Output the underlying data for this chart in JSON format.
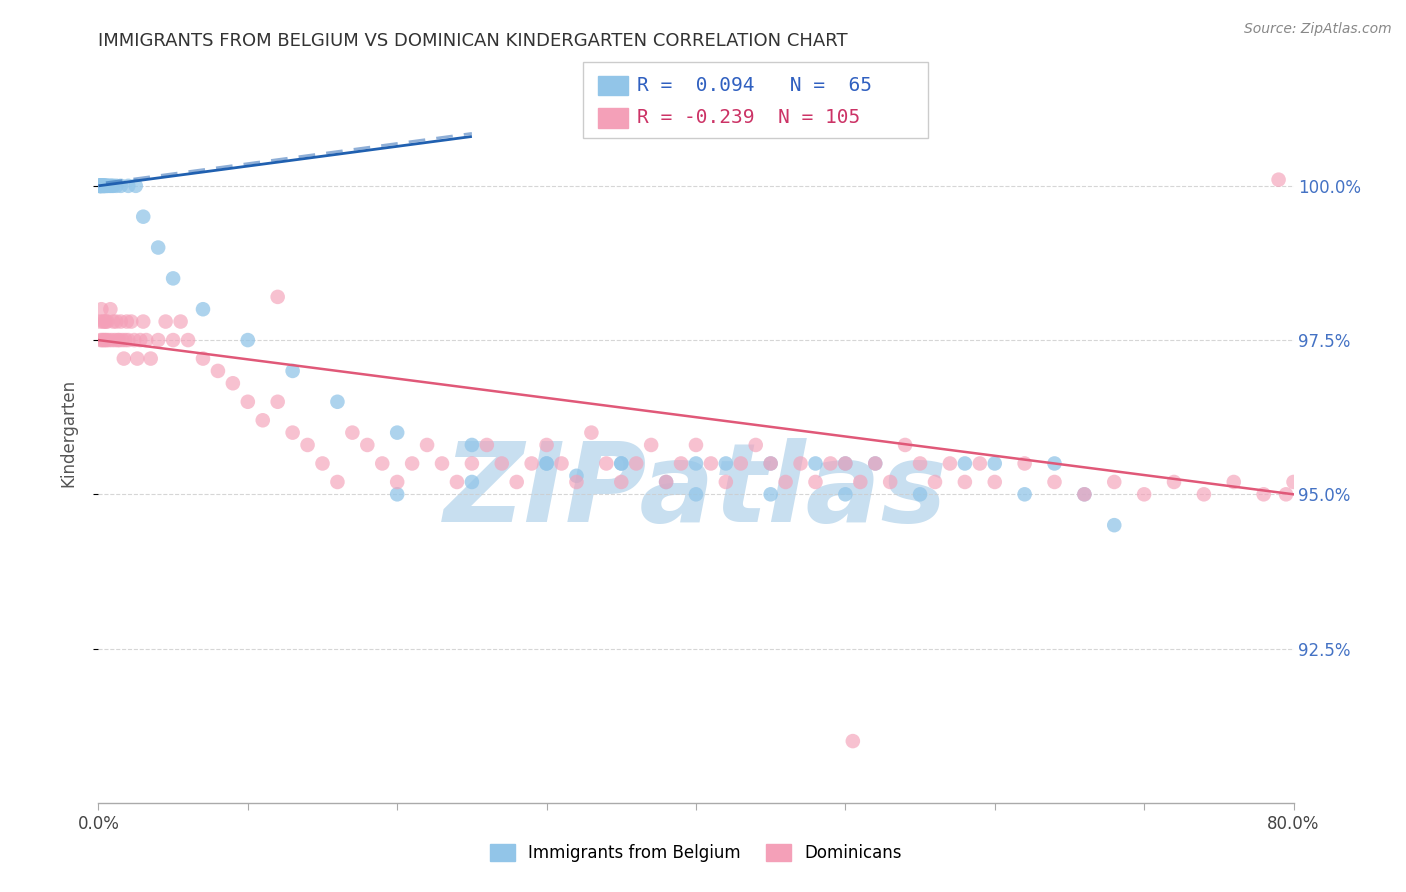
{
  "title": "IMMIGRANTS FROM BELGIUM VS DOMINICAN KINDERGARTEN CORRELATION CHART",
  "source": "Source: ZipAtlas.com",
  "ylabel_label": "Kindergarten",
  "yticks": [
    92.5,
    95.0,
    97.5,
    100.0
  ],
  "ytick_labels": [
    "92.5%",
    "95.0%",
    "97.5%",
    "100.0%"
  ],
  "xlim": [
    0.0,
    80.0
  ],
  "ylim": [
    90.0,
    102.0
  ],
  "yplot_min": 90.0,
  "yplot_max": 102.0,
  "belgium_R": 0.094,
  "belgium_N": 65,
  "dominican_R": -0.239,
  "dominican_N": 105,
  "belgium_color": "#92c5e8",
  "dominican_color": "#f4a0b8",
  "belgium_line_color": "#2060b0",
  "dominican_line_color": "#e05878",
  "watermark_color": "#c8dff0",
  "belgium_x": [
    0.05,
    0.06,
    0.08,
    0.1,
    0.12,
    0.13,
    0.14,
    0.15,
    0.16,
    0.18,
    0.2,
    0.22,
    0.25,
    0.28,
    0.3,
    0.32,
    0.35,
    0.38,
    0.4,
    0.42,
    0.45,
    0.5,
    0.55,
    0.6,
    0.7,
    0.8,
    0.9,
    1.0,
    1.2,
    1.5,
    2.0,
    2.5,
    3.0,
    4.0,
    5.0,
    7.0,
    10.0,
    13.0,
    16.0,
    20.0,
    25.0,
    30.0,
    35.0,
    40.0,
    45.0,
    50.0,
    20.0,
    25.0,
    30.0,
    32.0,
    35.0,
    38.0,
    40.0,
    42.0,
    45.0,
    48.0,
    50.0,
    52.0,
    55.0,
    58.0,
    60.0,
    62.0,
    64.0,
    66.0,
    68.0
  ],
  "belgium_y": [
    100.0,
    100.0,
    100.0,
    100.0,
    100.0,
    100.0,
    100.0,
    100.0,
    100.0,
    100.0,
    100.0,
    100.0,
    100.0,
    100.0,
    100.0,
    100.0,
    100.0,
    100.0,
    100.0,
    100.0,
    100.0,
    100.0,
    100.0,
    100.0,
    100.0,
    100.0,
    100.0,
    100.0,
    100.0,
    100.0,
    100.0,
    100.0,
    99.5,
    99.0,
    98.5,
    98.0,
    97.5,
    97.0,
    96.5,
    96.0,
    95.8,
    95.5,
    95.5,
    95.5,
    95.5,
    95.5,
    95.0,
    95.2,
    95.5,
    95.3,
    95.5,
    95.2,
    95.0,
    95.5,
    95.0,
    95.5,
    95.0,
    95.5,
    95.0,
    95.5,
    95.5,
    95.0,
    95.5,
    95.0,
    94.5
  ],
  "dominican_x": [
    0.1,
    0.15,
    0.2,
    0.25,
    0.3,
    0.35,
    0.4,
    0.45,
    0.5,
    0.55,
    0.6,
    0.7,
    0.8,
    0.9,
    1.0,
    1.1,
    1.2,
    1.3,
    1.4,
    1.5,
    1.6,
    1.7,
    1.8,
    1.9,
    2.0,
    2.2,
    2.4,
    2.6,
    2.8,
    3.0,
    3.2,
    3.5,
    4.0,
    4.5,
    5.0,
    5.5,
    6.0,
    7.0,
    8.0,
    9.0,
    10.0,
    11.0,
    12.0,
    13.0,
    14.0,
    15.0,
    16.0,
    17.0,
    18.0,
    19.0,
    20.0,
    21.0,
    22.0,
    23.0,
    24.0,
    25.0,
    26.0,
    27.0,
    28.0,
    29.0,
    30.0,
    31.0,
    32.0,
    33.0,
    34.0,
    35.0,
    36.0,
    37.0,
    38.0,
    39.0,
    40.0,
    41.0,
    42.0,
    43.0,
    44.0,
    45.0,
    46.0,
    47.0,
    48.0,
    49.0,
    50.0,
    51.0,
    52.0,
    53.0,
    54.0,
    55.0,
    56.0,
    57.0,
    58.0,
    59.0,
    60.0,
    62.0,
    64.0,
    66.0,
    68.0,
    70.0,
    72.0,
    74.0,
    76.0,
    78.0,
    79.0,
    79.5,
    80.0,
    50.5,
    12.0
  ],
  "dominican_y": [
    97.8,
    97.5,
    98.0,
    97.5,
    97.8,
    97.5,
    97.8,
    97.5,
    97.8,
    97.5,
    97.8,
    97.5,
    98.0,
    97.5,
    97.8,
    97.5,
    97.8,
    97.5,
    97.5,
    97.8,
    97.5,
    97.2,
    97.5,
    97.8,
    97.5,
    97.8,
    97.5,
    97.2,
    97.5,
    97.8,
    97.5,
    97.2,
    97.5,
    97.8,
    97.5,
    97.8,
    97.5,
    97.2,
    97.0,
    96.8,
    96.5,
    96.2,
    96.5,
    96.0,
    95.8,
    95.5,
    95.2,
    96.0,
    95.8,
    95.5,
    95.2,
    95.5,
    95.8,
    95.5,
    95.2,
    95.5,
    95.8,
    95.5,
    95.2,
    95.5,
    95.8,
    95.5,
    95.2,
    96.0,
    95.5,
    95.2,
    95.5,
    95.8,
    95.2,
    95.5,
    95.8,
    95.5,
    95.2,
    95.5,
    95.8,
    95.5,
    95.2,
    95.5,
    95.2,
    95.5,
    95.5,
    95.2,
    95.5,
    95.2,
    95.8,
    95.5,
    95.2,
    95.5,
    95.2,
    95.5,
    95.2,
    95.5,
    95.2,
    95.0,
    95.2,
    95.0,
    95.2,
    95.0,
    95.2,
    95.0,
    100.1,
    95.0,
    95.2,
    91.0,
    98.2
  ],
  "bel_line_x": [
    0.0,
    25.0
  ],
  "bel_line_y": [
    100.3,
    101.2
  ],
  "dom_line_x": [
    0.0,
    80.0
  ],
  "dom_line_y": [
    97.5,
    95.0
  ]
}
